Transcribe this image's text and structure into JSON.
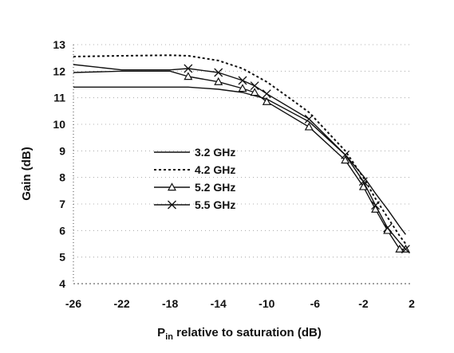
{
  "chart_data": {
    "type": "line",
    "xlabel_main": "P",
    "xlabel_sub": "in",
    "xlabel_rest": " relative to saturation (dB)",
    "ylabel": "Gain (dB)",
    "xlim": [
      -26,
      2
    ],
    "ylim": [
      4,
      13
    ],
    "xticks": [
      "-26",
      "-22",
      "-18",
      "-14",
      "-10",
      "-6",
      "-2",
      "2"
    ],
    "yticks": [
      "4",
      "5",
      "6",
      "7",
      "8",
      "9",
      "10",
      "11",
      "12",
      "13"
    ],
    "xtick_values": [
      -26,
      -22,
      -18,
      -14,
      -10,
      -6,
      -2,
      2
    ],
    "ytick_values": [
      4,
      5,
      6,
      7,
      8,
      9,
      10,
      11,
      12,
      13
    ],
    "legend_position": "center-left",
    "series": [
      {
        "name": "3.2 GHz",
        "style": "solid",
        "marker": "none",
        "color": "#111111",
        "x": [
          -26,
          -22,
          -18,
          -16.5,
          -14,
          -12,
          -10,
          -6.5,
          -3.5,
          -2,
          -1,
          0,
          1,
          1.5
        ],
        "y": [
          11.4,
          11.4,
          11.4,
          11.4,
          11.32,
          11.2,
          10.95,
          10.1,
          8.85,
          8.05,
          7.4,
          6.8,
          6.15,
          5.85
        ]
      },
      {
        "name": "4.2 GHz",
        "style": "dashed",
        "marker": "none",
        "color": "#111111",
        "x": [
          -26,
          -22,
          -18,
          -16.5,
          -14,
          -12,
          -10,
          -8,
          -6.5,
          -3.5,
          -2,
          -1,
          0,
          1,
          1.5
        ],
        "y": [
          12.55,
          12.58,
          12.6,
          12.58,
          12.4,
          12.1,
          11.6,
          10.95,
          10.45,
          9.0,
          8.0,
          7.2,
          6.5,
          5.8,
          5.5
        ]
      },
      {
        "name": "5.2 GHz",
        "style": "solid",
        "marker": "triangle",
        "color": "#111111",
        "x": [
          -26,
          -22,
          -18,
          -16.5,
          -14,
          -12,
          -11,
          -10,
          -6.5,
          -3.5,
          -2,
          -1,
          0,
          1,
          1.5
        ],
        "y": [
          11.95,
          12.0,
          12.0,
          11.8,
          11.6,
          11.35,
          11.2,
          10.85,
          9.9,
          8.65,
          7.65,
          6.8,
          6.0,
          5.3,
          5.3
        ]
      },
      {
        "name": "5.5 GHz",
        "style": "solid",
        "marker": "x",
        "color": "#111111",
        "x": [
          -26,
          -22,
          -18,
          -16.5,
          -14,
          -12,
          -11,
          -10,
          -6.5,
          -3.5,
          -2,
          -1,
          0,
          1,
          1.5
        ],
        "y": [
          12.25,
          12.05,
          12.05,
          12.1,
          11.95,
          11.65,
          11.45,
          11.15,
          10.2,
          8.85,
          7.85,
          6.95,
          6.1,
          5.55,
          5.3
        ]
      }
    ]
  }
}
